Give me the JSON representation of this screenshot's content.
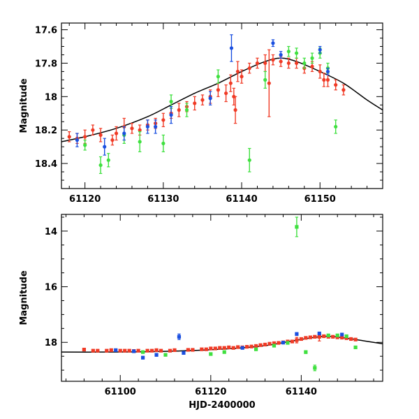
{
  "colors": {
    "red": "#f03a25",
    "green": "#3fe03f",
    "blue": "#1a4fe0",
    "model": "#000000"
  },
  "chart_data": [
    {
      "type": "scatter",
      "panel": "top",
      "ylabel": "Magnitude",
      "xlabel": "",
      "xlim": [
        61117,
        61158
      ],
      "ylim": [
        18.55,
        17.56
      ],
      "y_inverted": true,
      "x_ticks": [
        61120,
        61130,
        61140,
        61150
      ],
      "x_tick_labels": [
        "61120",
        "61130",
        "61140",
        "61150"
      ],
      "y_ticks": [
        17.6,
        17.8,
        18,
        18.2,
        18.4
      ],
      "y_tick_labels": [
        "17.6",
        "17.8",
        "18",
        "18.2",
        "18.4"
      ],
      "model_curve": {
        "name": "model",
        "x": [
          61117,
          61120,
          61124,
          61128,
          61131,
          61134,
          61137,
          61140,
          61143,
          61145,
          61147,
          61150,
          61153,
          61156,
          61158
        ],
        "y": [
          18.27,
          18.24,
          18.19,
          18.12,
          18.05,
          17.98,
          17.92,
          17.85,
          17.79,
          17.77,
          17.79,
          17.85,
          17.92,
          18.02,
          18.08
        ]
      },
      "series": [
        {
          "name": "red",
          "color": "red",
          "points": [
            [
              61118,
              18.24,
              0.03
            ],
            [
              61119,
              18.25,
              0.03
            ],
            [
              61120,
              18.24,
              0.04
            ],
            [
              61121,
              18.2,
              0.03
            ],
            [
              61122,
              18.23,
              0.04
            ],
            [
              61123.5,
              18.26,
              0.03
            ],
            [
              61124,
              18.22,
              0.04
            ],
            [
              61125,
              18.18,
              0.05
            ],
            [
              61126,
              18.19,
              0.03
            ],
            [
              61127,
              18.2,
              0.03
            ],
            [
              61128,
              18.17,
              0.03
            ],
            [
              61129,
              18.16,
              0.03
            ],
            [
              61130,
              18.14,
              0.04
            ],
            [
              61131,
              18.1,
              0.03
            ],
            [
              61132,
              18.08,
              0.04
            ],
            [
              61133,
              18.06,
              0.03
            ],
            [
              61134,
              18.04,
              0.04
            ],
            [
              61135,
              18.02,
              0.03
            ],
            [
              61136,
              18.0,
              0.04
            ],
            [
              61137,
              17.96,
              0.04
            ],
            [
              61138,
              17.98,
              0.05
            ],
            [
              61138.6,
              17.92,
              0.05
            ],
            [
              61139,
              18.0,
              0.05
            ],
            [
              61139.2,
              18.08,
              0.08
            ],
            [
              61139.5,
              17.85,
              0.06
            ],
            [
              61140,
              17.88,
              0.04
            ],
            [
              61141,
              17.83,
              0.03
            ],
            [
              61142,
              17.8,
              0.03
            ],
            [
              61143,
              17.8,
              0.05
            ],
            [
              61143.5,
              17.92,
              0.2
            ],
            [
              61144,
              17.78,
              0.03
            ],
            [
              61145,
              17.79,
              0.03
            ],
            [
              61146,
              17.8,
              0.03
            ],
            [
              61147,
              17.8,
              0.03
            ],
            [
              61148,
              17.83,
              0.03
            ],
            [
              61149,
              17.82,
              0.03
            ],
            [
              61150,
              17.85,
              0.04
            ],
            [
              61150.5,
              17.9,
              0.04
            ],
            [
              61151,
              17.9,
              0.04
            ],
            [
              61152,
              17.93,
              0.03
            ],
            [
              61153,
              17.96,
              0.03
            ]
          ]
        },
        {
          "name": "green",
          "color": "green",
          "points": [
            [
              61120,
              18.29,
              0.03
            ],
            [
              61122,
              18.41,
              0.05
            ],
            [
              61123,
              18.38,
              0.04
            ],
            [
              61125,
              18.23,
              0.05
            ],
            [
              61127,
              18.27,
              0.06
            ],
            [
              61130,
              18.28,
              0.05
            ],
            [
              61131,
              18.03,
              0.04
            ],
            [
              61133,
              18.08,
              0.04
            ],
            [
              61137,
              17.88,
              0.04
            ],
            [
              61143,
              17.9,
              0.05
            ],
            [
              61141,
              18.38,
              0.07
            ],
            [
              61146,
              17.73,
              0.03
            ],
            [
              61147,
              17.74,
              0.03
            ],
            [
              61148,
              17.8,
              0.03
            ],
            [
              61149,
              17.77,
              0.03
            ],
            [
              61150,
              17.74,
              0.03
            ],
            [
              61151,
              17.83,
              0.03
            ],
            [
              61152,
              18.18,
              0.04
            ]
          ]
        },
        {
          "name": "blue",
          "color": "blue",
          "points": [
            [
              61119,
              18.26,
              0.04
            ],
            [
              61122.5,
              18.3,
              0.05
            ],
            [
              61125,
              18.22,
              0.04
            ],
            [
              61128,
              18.18,
              0.04
            ],
            [
              61129,
              18.18,
              0.04
            ],
            [
              61131,
              18.11,
              0.05
            ],
            [
              61136,
              18.01,
              0.04
            ],
            [
              61138.7,
              17.71,
              0.08
            ],
            [
              61144,
              17.68,
              0.02
            ],
            [
              61145,
              17.75,
              0.02
            ],
            [
              61150,
              17.72,
              0.02
            ],
            [
              61151,
              17.85,
              0.02
            ]
          ]
        }
      ]
    },
    {
      "type": "scatter",
      "panel": "bottom",
      "ylabel": "Magnitude",
      "xlabel": "HJD-2400000",
      "xlim": [
        61087,
        61158
      ],
      "ylim": [
        19.4,
        13.4
      ],
      "y_inverted": true,
      "x_ticks": [
        61100,
        61120,
        61140
      ],
      "x_tick_labels": [
        "61100",
        "61120",
        "61140"
      ],
      "y_ticks": [
        14,
        16,
        18
      ],
      "y_tick_labels": [
        "14",
        "16",
        "18"
      ],
      "model_curve": {
        "name": "model",
        "x": [
          61087,
          61095,
          61105,
          61115,
          61125,
          61132,
          61138,
          61143,
          61146,
          61150,
          61154,
          61158
        ],
        "y": [
          18.35,
          18.35,
          18.34,
          18.3,
          18.22,
          18.12,
          17.95,
          17.82,
          17.78,
          17.85,
          17.95,
          18.05
        ]
      },
      "series": [
        {
          "name": "red",
          "color": "red",
          "points": [
            [
              61092,
              18.26,
              0.03
            ],
            [
              61094,
              18.3,
              0.03
            ],
            [
              61095,
              18.3,
              0.03
            ],
            [
              61097,
              18.3,
              0.03
            ],
            [
              61098,
              18.28,
              0.03
            ],
            [
              61100,
              18.3,
              0.03
            ],
            [
              61101,
              18.3,
              0.03
            ],
            [
              61102,
              18.3,
              0.03
            ],
            [
              61103,
              18.31,
              0.03
            ],
            [
              61104,
              18.3,
              0.03
            ],
            [
              61106,
              18.3,
              0.03
            ],
            [
              61107,
              18.3,
              0.03
            ],
            [
              61108,
              18.28,
              0.03
            ],
            [
              61109,
              18.3,
              0.03
            ],
            [
              61111,
              18.3,
              0.03
            ],
            [
              61112,
              18.28,
              0.03
            ],
            [
              61115,
              18.27,
              0.03
            ],
            [
              61116,
              18.27,
              0.03
            ],
            [
              61118,
              18.25,
              0.03
            ],
            [
              61119,
              18.25,
              0.03
            ],
            [
              61120,
              18.22,
              0.03
            ],
            [
              61121,
              18.22,
              0.03
            ],
            [
              61122,
              18.2,
              0.03
            ],
            [
              61123,
              18.2,
              0.03
            ],
            [
              61124,
              18.18,
              0.03
            ],
            [
              61125,
              18.2,
              0.03
            ],
            [
              61126,
              18.17,
              0.03
            ],
            [
              61127,
              18.18,
              0.03
            ],
            [
              61128,
              18.16,
              0.03
            ],
            [
              61129,
              18.15,
              0.03
            ],
            [
              61130,
              18.13,
              0.03
            ],
            [
              61131,
              18.1,
              0.03
            ],
            [
              61132,
              18.08,
              0.03
            ],
            [
              61133,
              18.05,
              0.03
            ],
            [
              61134,
              18.03,
              0.03
            ],
            [
              61135,
              18.02,
              0.03
            ],
            [
              61136,
              18.0,
              0.03
            ],
            [
              61137,
              17.97,
              0.03
            ],
            [
              61138,
              17.97,
              0.04
            ],
            [
              61139,
              17.92,
              0.1
            ],
            [
              61140,
              17.88,
              0.04
            ],
            [
              61141,
              17.84,
              0.03
            ],
            [
              61142,
              17.82,
              0.03
            ],
            [
              61143,
              17.8,
              0.03
            ],
            [
              61144,
              17.8,
              0.15
            ],
            [
              61145,
              17.78,
              0.03
            ],
            [
              61146,
              17.8,
              0.03
            ],
            [
              61147,
              17.8,
              0.03
            ],
            [
              61148,
              17.82,
              0.03
            ],
            [
              61149,
              17.83,
              0.03
            ],
            [
              61150,
              17.85,
              0.03
            ],
            [
              61151,
              17.88,
              0.03
            ],
            [
              61152,
              17.9,
              0.03
            ]
          ]
        },
        {
          "name": "green",
          "color": "green",
          "points": [
            [
              61105,
              18.35,
              0.03
            ],
            [
              61110,
              18.45,
              0.03
            ],
            [
              61120,
              18.42,
              0.04
            ],
            [
              61123,
              18.35,
              0.03
            ],
            [
              61130,
              18.25,
              0.04
            ],
            [
              61134,
              18.12,
              0.03
            ],
            [
              61137,
              18.02,
              0.03
            ],
            [
              61139,
              13.85,
              0.35
            ],
            [
              61141,
              18.35,
              0.05
            ],
            [
              61143,
              18.92,
              0.1
            ],
            [
              61146,
              17.75,
              0.03
            ],
            [
              61148,
              17.75,
              0.03
            ],
            [
              61150,
              17.78,
              0.03
            ],
            [
              61152,
              18.18,
              0.04
            ]
          ]
        },
        {
          "name": "blue",
          "color": "blue",
          "points": [
            [
              61099,
              18.28,
              0.04
            ],
            [
              61103,
              18.32,
              0.04
            ],
            [
              61105,
              18.55,
              0.05
            ],
            [
              61108,
              18.45,
              0.05
            ],
            [
              61113,
              17.8,
              0.1
            ],
            [
              61114,
              18.38,
              0.05
            ],
            [
              61127,
              18.2,
              0.04
            ],
            [
              61136,
              18.01,
              0.04
            ],
            [
              61139,
              17.7,
              0.05
            ],
            [
              61144,
              17.68,
              0.03
            ],
            [
              61149,
              17.72,
              0.03
            ]
          ]
        }
      ]
    }
  ]
}
